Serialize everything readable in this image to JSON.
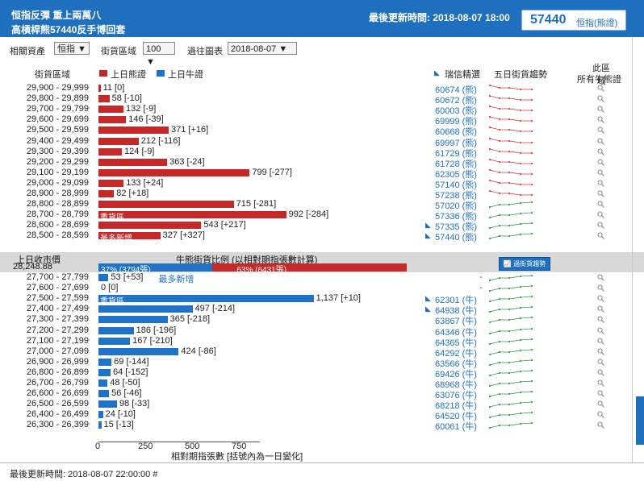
{
  "header": {
    "title_line1": "恒指反彈 重上兩萬八",
    "title_line2": "高槓桿熊57440反手博回套",
    "last_update": "最後更新時間: 2018-08-07 18:00",
    "code_box_number": "57440",
    "code_box_label": "恒指(熊證)"
  },
  "controls": {
    "asset_label": "相關資產",
    "asset_value": "恒指 ▼",
    "range_label": "街貨區域",
    "range_value": "100 ▼",
    "history_label": "過往圖表",
    "history_value": "2018-08-07 ▼"
  },
  "table_header": {
    "range_col": "街貨區域",
    "legend_bear": "上日熊證",
    "legend_bull": "上日牛證",
    "pick_col": "瑞信精選",
    "trend_col": "五日街貨趨勢",
    "all_col_line1": "此區域",
    "all_col_line2": "所有牛熊證"
  },
  "colors": {
    "header_bg": "#1f6fbf",
    "bear": "#c62828",
    "bull": "#1e73c9",
    "trend_down": "#e53935",
    "trend_up": "#2e9e3e"
  },
  "bear_rows": [
    {
      "range": "29,900 - 29,999",
      "value": 11,
      "label": "11 [0]",
      "code": "60674 (熊)",
      "hot": false,
      "trend": "down",
      "tag": ""
    },
    {
      "range": "29,800 - 29,899",
      "value": 58,
      "label": "58 [-10]",
      "code": "60672 (熊)",
      "hot": false,
      "trend": "down",
      "tag": ""
    },
    {
      "range": "29,700 - 29,799",
      "value": 132,
      "label": "132 [-9]",
      "code": "60003 (熊)",
      "hot": false,
      "trend": "down",
      "tag": ""
    },
    {
      "range": "29,600 - 29,699",
      "value": 146,
      "label": "146 [-39]",
      "code": "69999 (熊)",
      "hot": false,
      "trend": "down",
      "tag": ""
    },
    {
      "range": "29,500 - 29,599",
      "value": 371,
      "label": "371 [+16]",
      "code": "60668 (熊)",
      "hot": false,
      "trend": "down",
      "tag": ""
    },
    {
      "range": "29,400 - 29,499",
      "value": 212,
      "label": "212 [-116]",
      "code": "69997 (熊)",
      "hot": false,
      "trend": "down",
      "tag": ""
    },
    {
      "range": "29,300 - 29,399",
      "value": 124,
      "label": "124 [-9]",
      "code": "61729 (熊)",
      "hot": false,
      "trend": "down",
      "tag": ""
    },
    {
      "range": "29,200 - 29,299",
      "value": 363,
      "label": "363 [-24]",
      "code": "61728 (熊)",
      "hot": false,
      "trend": "down",
      "tag": ""
    },
    {
      "range": "29,100 - 29,199",
      "value": 799,
      "label": "799 [-277]",
      "code": "62305 (熊)",
      "hot": false,
      "trend": "down",
      "tag": ""
    },
    {
      "range": "29,000 - 29,099",
      "value": 133,
      "label": "133 [+24]",
      "code": "57140 (熊)",
      "hot": false,
      "trend": "down",
      "tag": ""
    },
    {
      "range": "28,900 - 28,999",
      "value": 82,
      "label": "82 [+18]",
      "code": "57238 (熊)",
      "hot": false,
      "trend": "down",
      "tag": ""
    },
    {
      "range": "28,800 - 28,899",
      "value": 715,
      "label": "715 [-281]",
      "code": "57020 (熊)",
      "hot": false,
      "trend": "up",
      "tag": ""
    },
    {
      "range": "28,700 - 28,799",
      "value": 992,
      "label": "992 [-284]",
      "code": "57336 (熊)",
      "hot": false,
      "trend": "up",
      "tag": "重貨區"
    },
    {
      "range": "28,600 - 28,699",
      "value": 543,
      "label": "543 [+217]",
      "code": "57335 (熊)",
      "hot": true,
      "trend": "up",
      "tag": ""
    },
    {
      "range": "28,500 - 28,599",
      "value": 327,
      "label": "327 [+327]",
      "code": "57440 (熊)",
      "hot": true,
      "trend": "up",
      "tag": "最多新增"
    }
  ],
  "divider": {
    "close_label_line1": "上日收市價",
    "close_value": "28,248.88",
    "ratio_title": "牛熊街貨比例 (以相對期指張數計算)",
    "bull_pct": 37,
    "bull_text": "37% (3794張)",
    "bear_pct": 63,
    "bear_text": "63% (6431張)",
    "trend_button": "過街貨趨勢"
  },
  "bull_rows": [
    {
      "range": "27,700 - 27,799",
      "value": 53,
      "label": "53 [+53]",
      "extra": "最多新增",
      "code": "-",
      "hot": false,
      "trend": "up",
      "tag": ""
    },
    {
      "range": "27,600 - 27,699",
      "value": 0,
      "label": "0 [0]",
      "extra": "",
      "code": "-",
      "hot": false,
      "trend": "up",
      "tag": ""
    },
    {
      "range": "27,500 - 27,599",
      "value": 1137,
      "label": "1,137 [+10]",
      "extra": "",
      "code": "62301 (牛)",
      "hot": true,
      "trend": "up",
      "tag": "重貨區"
    },
    {
      "range": "27,400 - 27,499",
      "value": 497,
      "label": "497 [-214]",
      "extra": "",
      "code": "64938 (牛)",
      "hot": true,
      "trend": "up",
      "tag": ""
    },
    {
      "range": "27,300 - 27,399",
      "value": 365,
      "label": "365 [-218]",
      "extra": "",
      "code": "63867 (牛)",
      "hot": false,
      "trend": "up",
      "tag": ""
    },
    {
      "range": "27,200 - 27,299",
      "value": 186,
      "label": "186 [-196]",
      "extra": "",
      "code": "64346 (牛)",
      "hot": false,
      "trend": "up",
      "tag": ""
    },
    {
      "range": "27,100 - 27,199",
      "value": 167,
      "label": "167 [-210]",
      "extra": "",
      "code": "64365 (牛)",
      "hot": false,
      "trend": "up",
      "tag": ""
    },
    {
      "range": "27,000 - 27,099",
      "value": 424,
      "label": "424 [-86]",
      "extra": "",
      "code": "64292 (牛)",
      "hot": false,
      "trend": "up",
      "tag": ""
    },
    {
      "range": "26,900 - 26,999",
      "value": 69,
      "label": "69 [-144]",
      "extra": "",
      "code": "63566 (牛)",
      "hot": false,
      "trend": "up",
      "tag": ""
    },
    {
      "range": "26,800 - 26,899",
      "value": 64,
      "label": "64 [-152]",
      "extra": "",
      "code": "69426 (牛)",
      "hot": false,
      "trend": "up",
      "tag": ""
    },
    {
      "range": "26,700 - 26,799",
      "value": 48,
      "label": "48 [-50]",
      "extra": "",
      "code": "68968 (牛)",
      "hot": false,
      "trend": "up",
      "tag": ""
    },
    {
      "range": "26,600 - 26,699",
      "value": 56,
      "label": "56 [-46]",
      "extra": "",
      "code": "63076 (牛)",
      "hot": false,
      "trend": "up",
      "tag": ""
    },
    {
      "range": "26,500 - 26,599",
      "value": 98,
      "label": "98 [-33]",
      "extra": "",
      "code": "68218 (牛)",
      "hot": false,
      "trend": "up",
      "tag": ""
    },
    {
      "range": "26,400 - 26,499",
      "value": 24,
      "label": "24 [-10]",
      "extra": "",
      "code": "64520 (牛)",
      "hot": false,
      "trend": "up",
      "tag": ""
    },
    {
      "range": "26,300 - 26,399",
      "value": 15,
      "label": "15 [-13]",
      "extra": "",
      "code": "60061 (牛)",
      "hot": false,
      "trend": "up",
      "tag": ""
    }
  ],
  "axis": {
    "ticks": [
      "0",
      "250",
      "500",
      "750"
    ],
    "title": "相對期指張數 [括號內為一日變化]"
  },
  "footer": "最後更新時間: 2018-08-07 22:00:00 #"
}
